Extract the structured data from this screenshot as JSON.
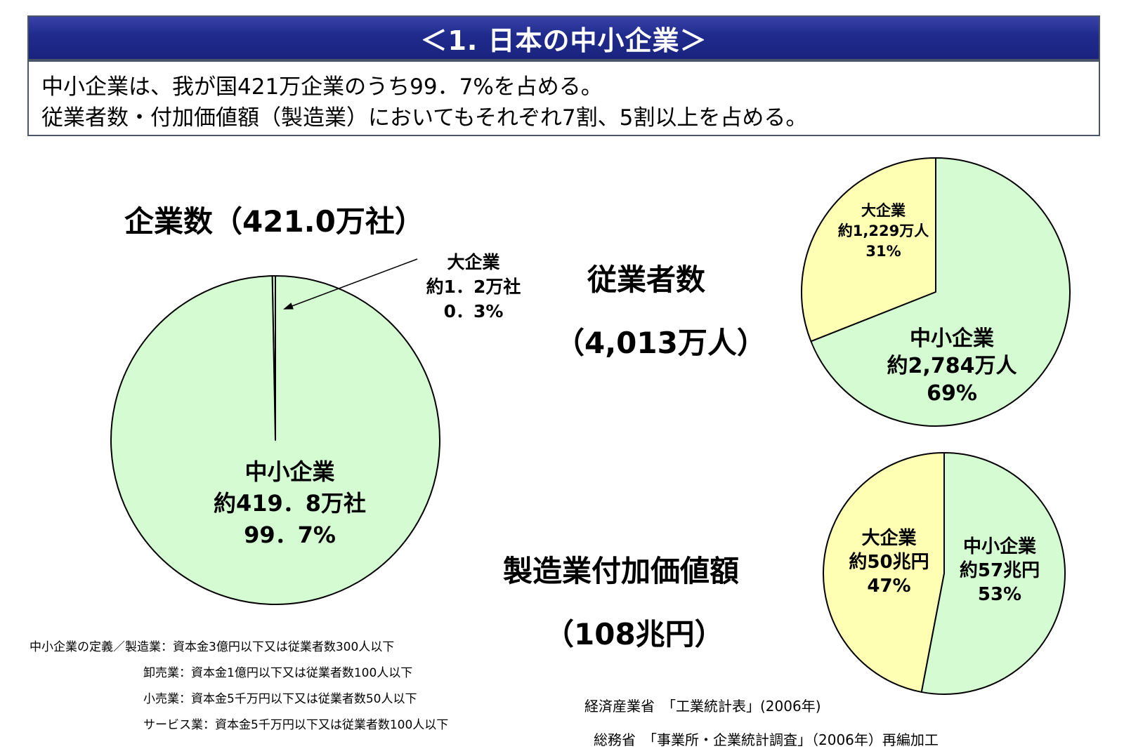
{
  "header": {
    "title": "＜1. 日本の中小企業＞"
  },
  "summary": {
    "line1": "中小企業は、我が国421万企業のうち99．7%を占める。",
    "line2": "従業者数・付加価値額（製造業）においてもそれぞれ7割、5割以上を占める。"
  },
  "chart_data": [
    {
      "type": "pie",
      "title": "企業数（421.0万社）",
      "slices": [
        {
          "name": "大企業",
          "amount": "約1．2万社",
          "percent": "0．3%",
          "value": 0.3,
          "color": "#d5fbd3"
        },
        {
          "name": "中小企業",
          "amount": "約419．8万社",
          "percent": "99．7%",
          "value": 99.7,
          "color": "#d5fbd3"
        }
      ]
    },
    {
      "type": "pie",
      "title": "従業者数",
      "subtitle": "（4,013万人）",
      "slices": [
        {
          "name": "大企業",
          "amount": "約1,229万人",
          "percent": "31%",
          "value": 31,
          "color": "#feffb3"
        },
        {
          "name": "中小企業",
          "amount": "約2,784万人",
          "percent": "69%",
          "value": 69,
          "color": "#d5fbd3"
        }
      ]
    },
    {
      "type": "pie",
      "title": "製造業付加価値額",
      "subtitle": "（108兆円）",
      "slices": [
        {
          "name": "大企業",
          "amount": "約50兆円",
          "percent": "47%",
          "value": 47,
          "color": "#feffb3"
        },
        {
          "name": "中小企業",
          "amount": "約57兆円",
          "percent": "53%",
          "value": 53,
          "color": "#d5fbd3"
        }
      ]
    }
  ],
  "definition": {
    "line1": "中小企業の定義／製造業：資本金3億円以下又は従業者数300人以下",
    "line2": "卸売業：資本金1億円以下又は従業者数100人以下",
    "line3": "小売業：資本金5千万円以下又は従業者数50人以下",
    "line4": "サービス業：資本金5千万円以下又は従業者数100人以下"
  },
  "source": {
    "line1": "経済産業省　「工業統計表」(2006年)",
    "line2": "総務省　「事業所・企業統計調査」（2006年）再編加工"
  }
}
